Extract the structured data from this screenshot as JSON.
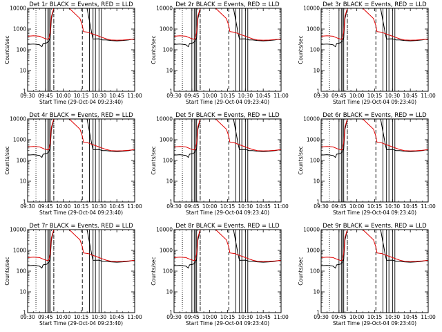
{
  "chart_data": {
    "type": "line",
    "yscale": "log",
    "ylim": [
      1,
      10000
    ],
    "xlim": [
      "09:30",
      "11:00"
    ],
    "xlabel": "Start Time (29-Oct-04 09:23:40)",
    "ylabel": "Counts/sec",
    "xticks": [
      "09:30",
      "09:45",
      "10:00",
      "10:15",
      "10:30",
      "10:45",
      "11:00"
    ],
    "yticks": [
      "1",
      "10",
      "100",
      "1000",
      "10000"
    ],
    "series_colors": {
      "events": "#000000",
      "lld": "#e00000"
    },
    "panels": [
      {
        "title": "Det 1r BLACK = Events, RED = LLD"
      },
      {
        "title": "Det 2r BLACK = Events, RED = LLD"
      },
      {
        "title": "Det 3r BLACK = Events, RED = LLD"
      },
      {
        "title": "Det 4r BLACK = Events, RED = LLD"
      },
      {
        "title": "Det 5r BLACK = Events, RED = LLD"
      },
      {
        "title": "Det 6r BLACK = Events, RED = LLD"
      },
      {
        "title": "Det 7r BLACK = Events, RED = LLD"
      },
      {
        "title": "Det 8r BLACK = Events, RED = LLD"
      },
      {
        "title": "Det 9r BLACK = Events, RED = LLD"
      }
    ],
    "events": [
      [
        "09:30",
        180
      ],
      [
        "09:35",
        190
      ],
      [
        "09:40",
        175
      ],
      [
        "09:42",
        140
      ],
      [
        "09:43",
        200
      ],
      [
        "09:46",
        215
      ],
      [
        "09:47",
        240
      ],
      [
        "09:48",
        270
      ],
      [
        "09:49",
        380
      ],
      [
        "09:50",
        3000
      ],
      [
        "09:52",
        10000
      ],
      [
        "09:55",
        10000
      ],
      [
        "10:20",
        10000
      ],
      [
        "10:24",
        580
      ],
      [
        "10:25",
        330
      ],
      [
        "10:30",
        340
      ],
      [
        "10:33",
        300
      ],
      [
        "10:36",
        300
      ],
      [
        "10:40",
        280
      ],
      [
        "10:45",
        270
      ],
      [
        "10:50",
        280
      ],
      [
        "10:55",
        300
      ],
      [
        "11:00",
        340
      ]
    ],
    "lld": [
      [
        "09:30",
        450
      ],
      [
        "09:35",
        470
      ],
      [
        "09:40",
        450
      ],
      [
        "09:44",
        360
      ],
      [
        "09:47",
        320
      ],
      [
        "09:48",
        360
      ],
      [
        "09:49",
        700
      ],
      [
        "09:50",
        4000
      ],
      [
        "09:52",
        10000
      ],
      [
        "10:05",
        10000
      ],
      [
        "10:14",
        3200
      ],
      [
        "10:16",
        1500
      ],
      [
        "10:17",
        750
      ],
      [
        "10:21",
        700
      ],
      [
        "10:24",
        600
      ],
      [
        "10:27",
        520
      ],
      [
        "10:30",
        450
      ],
      [
        "10:33",
        390
      ],
      [
        "10:36",
        340
      ],
      [
        "10:40",
        300
      ],
      [
        "10:45",
        290
      ],
      [
        "10:50",
        295
      ],
      [
        "10:55",
        310
      ],
      [
        "11:00",
        330
      ]
    ],
    "vlines_dotted": [
      "09:37",
      "09:52"
    ],
    "vlines_solid": [
      "09:45",
      "09:47",
      "09:48",
      "09:49",
      "10:22",
      "10:25",
      "10:27",
      "10:30",
      "10:32"
    ],
    "vlines_dashed": [
      "09:52",
      "10:16"
    ]
  }
}
